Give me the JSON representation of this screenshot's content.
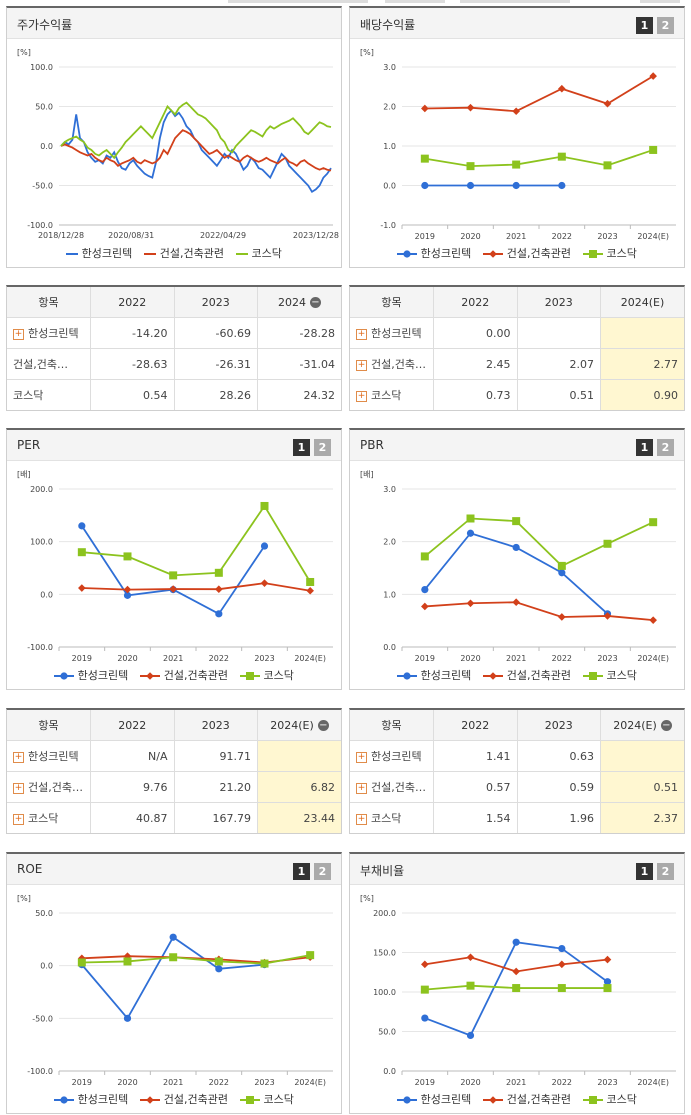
{
  "colors": {
    "company": "#2f6fd6",
    "industry": "#d2401a",
    "kosdaq": "#8cc31e",
    "estimate_bg": "#fff7d1"
  },
  "legend": [
    "한성크린텍",
    "건설,건축관련",
    "코스닥"
  ],
  "pager": [
    "1",
    "2"
  ],
  "panels": {
    "stock": {
      "title": "주가수익률",
      "unit": "[%]",
      "table": {
        "head": [
          "항목",
          "2022",
          "2023",
          "2024"
        ],
        "rows": [
          {
            "name": "한성크린텍",
            "vals": [
              "-14.20",
              "-60.69",
              "-28.28"
            ]
          },
          {
            "name": "건설,건축…",
            "vals": [
              "-28.63",
              "-26.31",
              "-31.04"
            ]
          },
          {
            "name": "코스닥",
            "vals": [
              "0.54",
              "28.26",
              "24.32"
            ]
          }
        ]
      }
    },
    "dividend": {
      "title": "배당수익률",
      "unit": "[%]",
      "table": {
        "head": [
          "항목",
          "2022",
          "2023",
          "2024(E)"
        ],
        "rows": [
          {
            "name": "한성크린텍",
            "vals": [
              "0.00",
              "",
              ""
            ]
          },
          {
            "name": "건설,건축…",
            "vals": [
              "2.45",
              "2.07",
              "2.77"
            ]
          },
          {
            "name": "코스닥",
            "vals": [
              "0.73",
              "0.51",
              "0.90"
            ]
          }
        ]
      }
    },
    "per": {
      "title": "PER",
      "unit": "[배]",
      "table": {
        "head": [
          "항목",
          "2022",
          "2023",
          "2024(E)"
        ],
        "rows": [
          {
            "name": "한성크린텍",
            "vals": [
              "N/A",
              "91.71",
              ""
            ]
          },
          {
            "name": "건설,건축…",
            "vals": [
              "9.76",
              "21.20",
              "6.82"
            ]
          },
          {
            "name": "코스닥",
            "vals": [
              "40.87",
              "167.79",
              "23.44"
            ]
          }
        ]
      }
    },
    "pbr": {
      "title": "PBR",
      "unit": "[배]",
      "table": {
        "head": [
          "항목",
          "2022",
          "2023",
          "2024(E)"
        ],
        "rows": [
          {
            "name": "한성크린텍",
            "vals": [
              "1.41",
              "0.63",
              ""
            ]
          },
          {
            "name": "건설,건축…",
            "vals": [
              "0.57",
              "0.59",
              "0.51"
            ]
          },
          {
            "name": "코스닥",
            "vals": [
              "1.54",
              "1.96",
              "2.37"
            ]
          }
        ]
      }
    },
    "roe": {
      "title": "ROE",
      "unit": "[%]"
    },
    "debt": {
      "title": "부채비율",
      "unit": "[%]"
    }
  },
  "chart_data": [
    {
      "id": "stock",
      "type": "line",
      "title": "주가수익률",
      "ylabel": "[%]",
      "ylim": [
        -100,
        100
      ],
      "yticks": [
        "100.0",
        "50.0",
        "0.0",
        "-50.0",
        "-100.0"
      ],
      "xticks": [
        "2018/12/28",
        "2020/08/31",
        "2022/04/29",
        "2023/12/28"
      ],
      "series": [
        {
          "name": "한성크린텍",
          "values": [
            0,
            5,
            2,
            8,
            40,
            10,
            5,
            -8,
            -15,
            -20,
            -18,
            -22,
            -12,
            -15,
            -8,
            -20,
            -28,
            -30,
            -22,
            -18,
            -25,
            -30,
            -35,
            -38,
            -40,
            -20,
            10,
            30,
            40,
            45,
            38,
            42,
            35,
            25,
            20,
            10,
            5,
            -5,
            -10,
            -15,
            -20,
            -25,
            -18,
            -10,
            -15,
            -5,
            -10,
            -20,
            -30,
            -25,
            -15,
            -20,
            -28,
            -30,
            -35,
            -40,
            -30,
            -20,
            -10,
            -15,
            -25,
            -30,
            -35,
            -40,
            -45,
            -50,
            -58,
            -55,
            -50,
            -40,
            -35,
            -28
          ]
        },
        {
          "name": "건설,건축관련",
          "values": [
            0,
            2,
            0,
            -2,
            -5,
            -8,
            -10,
            -12,
            -10,
            -15,
            -18,
            -20,
            -15,
            -18,
            -20,
            -25,
            -22,
            -20,
            -18,
            -15,
            -20,
            -22,
            -18,
            -20,
            -22,
            -20,
            -15,
            -5,
            -10,
            0,
            10,
            15,
            20,
            18,
            15,
            10,
            5,
            0,
            -5,
            -10,
            -8,
            -5,
            -10,
            -15,
            -12,
            -15,
            -18,
            -20,
            -15,
            -12,
            -15,
            -18,
            -20,
            -18,
            -15,
            -18,
            -20,
            -22,
            -18,
            -15,
            -20,
            -22,
            -25,
            -20,
            -18,
            -22,
            -25,
            -28,
            -30,
            -28,
            -30,
            -31
          ]
        },
        {
          "name": "코스닥",
          "values": [
            0,
            5,
            8,
            10,
            12,
            8,
            5,
            -2,
            -5,
            -10,
            -12,
            -8,
            -5,
            -10,
            -15,
            -8,
            -2,
            5,
            10,
            15,
            20,
            25,
            20,
            15,
            10,
            20,
            30,
            40,
            50,
            45,
            40,
            48,
            52,
            55,
            50,
            45,
            40,
            38,
            35,
            30,
            25,
            20,
            10,
            5,
            -5,
            -8,
            0,
            5,
            10,
            15,
            20,
            18,
            15,
            12,
            20,
            25,
            22,
            25,
            28,
            30,
            32,
            35,
            30,
            25,
            18,
            15,
            20,
            25,
            30,
            28,
            25,
            24
          ]
        }
      ]
    },
    {
      "id": "dividend",
      "type": "line",
      "title": "배당수익률",
      "ylabel": "[%]",
      "ylim": [
        -1,
        3
      ],
      "yticks": [
        "3.0",
        "2.0",
        "1.0",
        "0.0",
        "-1.0"
      ],
      "categories": [
        "2019",
        "2020",
        "2021",
        "2022",
        "2023",
        "2024(E)"
      ],
      "series": [
        {
          "name": "한성크린텍",
          "values": [
            0.0,
            0.0,
            0.0,
            0.0,
            null,
            null
          ]
        },
        {
          "name": "건설,건축관련",
          "values": [
            1.95,
            1.97,
            1.88,
            2.45,
            2.07,
            2.77
          ]
        },
        {
          "name": "코스닥",
          "values": [
            0.68,
            0.49,
            0.53,
            0.73,
            0.51,
            0.9
          ]
        }
      ]
    },
    {
      "id": "per",
      "type": "line",
      "title": "PER",
      "ylabel": "[배]",
      "ylim": [
        -100,
        200
      ],
      "yticks": [
        "200.0",
        "100.0",
        "0.0",
        "-100.0"
      ],
      "categories": [
        "2019",
        "2020",
        "2021",
        "2022",
        "2023",
        "2024(E)"
      ],
      "series": [
        {
          "name": "한성크린텍",
          "values": [
            130,
            -2,
            9,
            -37,
            91.71,
            null
          ]
        },
        {
          "name": "건설,건축관련",
          "values": [
            12,
            9,
            10,
            9.76,
            21.2,
            6.82
          ]
        },
        {
          "name": "코스닥",
          "values": [
            80,
            72,
            36,
            40.87,
            167.79,
            23.44
          ]
        }
      ]
    },
    {
      "id": "pbr",
      "type": "line",
      "title": "PBR",
      "ylabel": "[배]",
      "ylim": [
        0,
        3
      ],
      "yticks": [
        "3.0",
        "2.0",
        "1.0",
        "0.0"
      ],
      "categories": [
        "2019",
        "2020",
        "2021",
        "2022",
        "2023",
        "2024(E)"
      ],
      "series": [
        {
          "name": "한성크린텍",
          "values": [
            1.09,
            2.16,
            1.89,
            1.41,
            0.63,
            null
          ]
        },
        {
          "name": "건설,건축관련",
          "values": [
            0.77,
            0.83,
            0.85,
            0.57,
            0.59,
            0.51
          ]
        },
        {
          "name": "코스닥",
          "values": [
            1.72,
            2.44,
            2.39,
            1.54,
            1.96,
            2.37
          ]
        }
      ]
    },
    {
      "id": "roe",
      "type": "line",
      "title": "ROE",
      "ylabel": "[%]",
      "ylim": [
        -100,
        50
      ],
      "yticks": [
        "50.0",
        "0.0",
        "-50.0",
        "-100.0"
      ],
      "categories": [
        "2019",
        "2020",
        "2021",
        "2022",
        "2023",
        "2024(E)"
      ],
      "series": [
        {
          "name": "한성크린텍",
          "values": [
            1,
            -50,
            27,
            -3,
            1,
            null
          ]
        },
        {
          "name": "건설,건축관련",
          "values": [
            7,
            9,
            8,
            6,
            3,
            8
          ]
        },
        {
          "name": "코스닥",
          "values": [
            3,
            4,
            8,
            4,
            2,
            10
          ]
        }
      ]
    },
    {
      "id": "debt",
      "type": "line",
      "title": "부채비율",
      "ylabel": "[%]",
      "ylim": [
        0,
        200
      ],
      "yticks": [
        "200.0",
        "150.0",
        "100.0",
        "50.0",
        "0.0"
      ],
      "categories": [
        "2019",
        "2020",
        "2021",
        "2022",
        "2023",
        "2024(E)"
      ],
      "series": [
        {
          "name": "한성크린텍",
          "values": [
            67,
            45,
            163,
            155,
            113,
            null
          ]
        },
        {
          "name": "건설,건축관련",
          "values": [
            135,
            144,
            126,
            135,
            141,
            null
          ]
        },
        {
          "name": "코스닥",
          "values": [
            103,
            108,
            105,
            105,
            105,
            null
          ]
        }
      ]
    }
  ]
}
